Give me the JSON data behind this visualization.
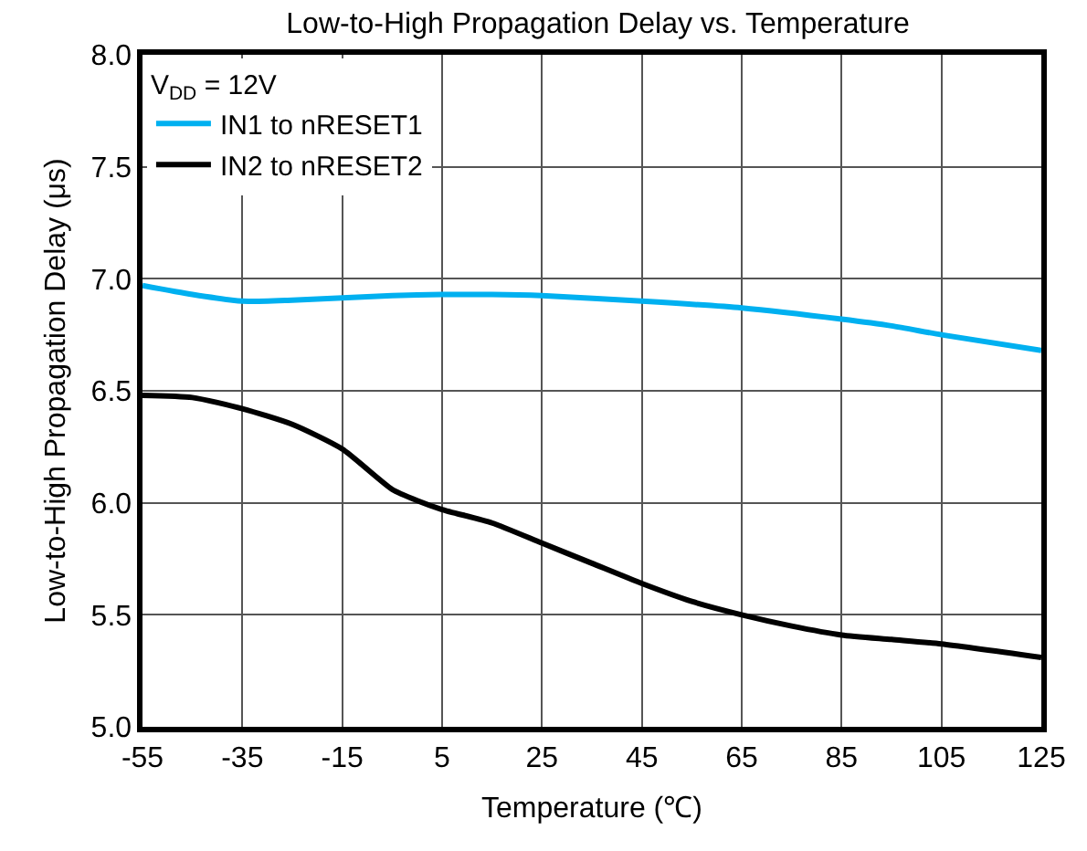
{
  "chart_data": {
    "type": "line",
    "title": "Low-to-High Propagation Delay vs. Temperature",
    "xlabel": "Temperature (℃)",
    "ylabel": "Low-to-High Propagation Delay (μs)",
    "legend_title": "V$_{DD}$ = 12V",
    "legend": "top left",
    "grid": true,
    "marker": "none",
    "line_style": "solid",
    "xlim": [
      -55,
      125
    ],
    "xticks": [
      -55,
      -35,
      -15,
      5,
      25,
      45,
      65,
      85,
      105,
      125
    ],
    "ylim": [
      5.0,
      8.0
    ],
    "yticks": [
      {
        "value": 5,
        "label": "5.0"
      },
      5.5,
      {
        "value": 6,
        "label": "6.0"
      },
      6.5,
      {
        "value": 7,
        "label": "7.0"
      },
      7.5,
      {
        "value": 8,
        "label": "8.0"
      }
    ],
    "series": [
      {
        "name": "IN1 to nRESET1",
        "color": "#00b0f0",
        "x": [
          -55,
          -45,
          -35,
          -25,
          -15,
          -5,
          5,
          15,
          25,
          45,
          65,
          85,
          95,
          105,
          125
        ],
        "values": [
          6.97,
          6.93,
          6.9,
          6.905,
          6.915,
          6.925,
          6.93,
          6.93,
          6.925,
          6.9,
          6.87,
          6.82,
          6.79,
          6.75,
          6.68
        ]
      },
      {
        "name": "IN2 to nRESET2",
        "color": "#000000",
        "x": [
          -55,
          -45,
          -35,
          -25,
          -15,
          -5,
          0,
          5,
          15,
          25,
          35,
          45,
          55,
          65,
          75,
          85,
          95,
          105,
          125
        ],
        "values": [
          6.48,
          6.47,
          6.42,
          6.35,
          6.24,
          6.06,
          6.01,
          5.97,
          5.91,
          5.82,
          5.73,
          5.64,
          5.56,
          5.5,
          5.45,
          5.41,
          5.39,
          5.37,
          5.31
        ]
      }
    ]
  }
}
